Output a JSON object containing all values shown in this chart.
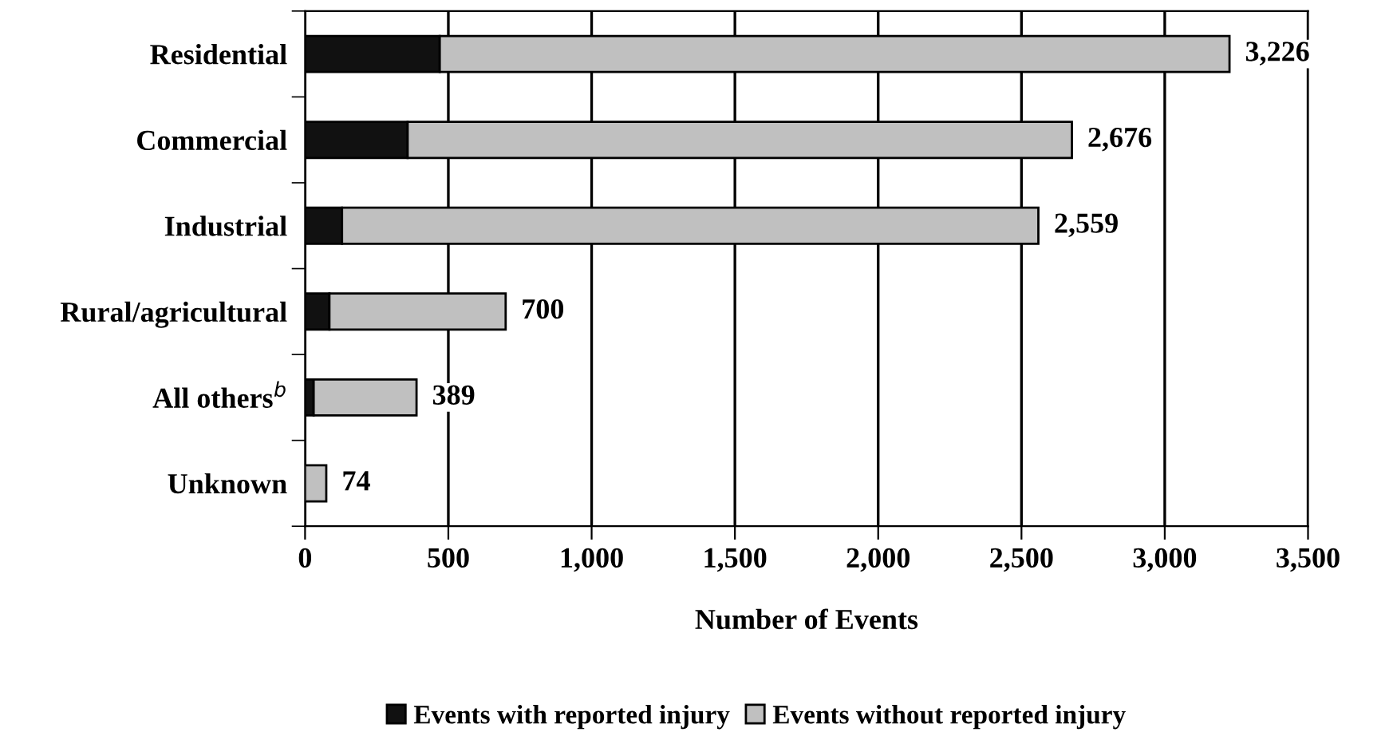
{
  "chart_data": {
    "type": "bar",
    "orientation": "horizontal",
    "stacked": true,
    "categories": [
      "Residential",
      "Commercial",
      "Industrial",
      "Rural/agricultural",
      "All others$^{b}$",
      "Unknown"
    ],
    "series": [
      {
        "name": "Events with reported injury",
        "color": "#111111",
        "values": [
          470,
          358,
          129,
          85,
          30,
          0
        ]
      },
      {
        "name": "Events without reported injury",
        "color": "#c0c0c0",
        "values": [
          2756,
          2318,
          2430,
          615,
          359,
          74
        ]
      }
    ],
    "totals": [
      "3,226",
      "2,676",
      "2,559",
      "700",
      "389",
      "74"
    ],
    "xlabel": "Number of Events",
    "xlim": [
      0,
      3500
    ],
    "xticks": [
      {
        "value": 0,
        "label": "0"
      },
      {
        "value": 500,
        "label": "500"
      },
      {
        "value": 1000,
        "label": "1,000"
      },
      {
        "value": 1500,
        "label": "1,500"
      },
      {
        "value": 2000,
        "label": "2,000"
      },
      {
        "value": 2500,
        "label": "2,500"
      },
      {
        "value": 3000,
        "label": "3,000"
      },
      {
        "value": 3500,
        "label": "3,500"
      }
    ],
    "grid": "x",
    "legend": "bottom"
  }
}
